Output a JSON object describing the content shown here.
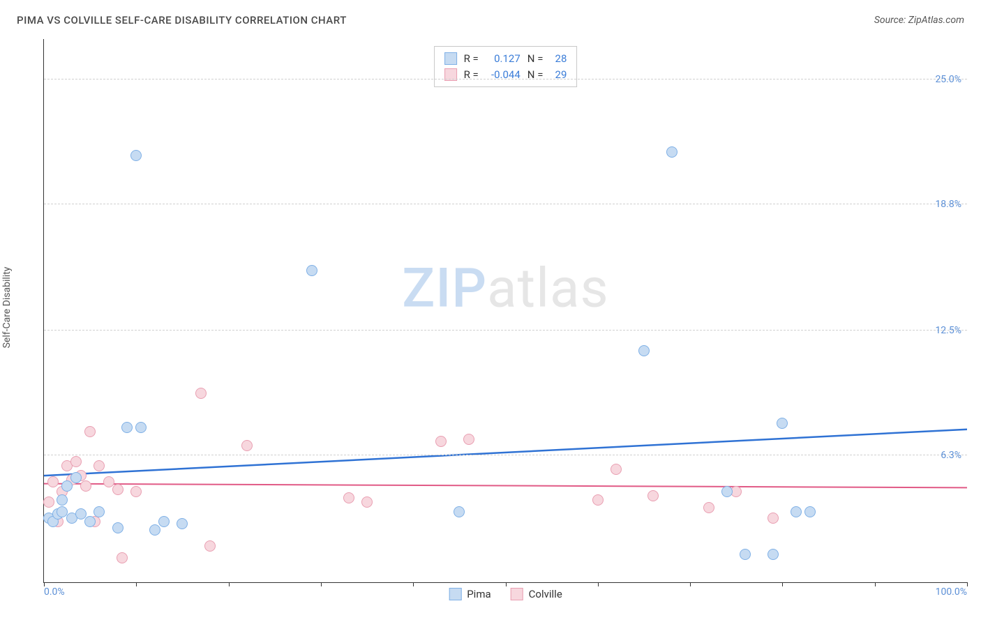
{
  "title": "PIMA VS COLVILLE SELF-CARE DISABILITY CORRELATION CHART",
  "source": "Source: ZipAtlas.com",
  "ylabel": "Self-Care Disability",
  "watermark": {
    "part1": "ZIP",
    "part2": "atlas"
  },
  "chart": {
    "type": "scatter",
    "background_color": "#ffffff",
    "grid_color": "#d0d0d0",
    "axis_color": "#333333",
    "xlim": [
      0,
      100
    ],
    "ylim": [
      0,
      27
    ],
    "x_ticks": [
      0,
      10,
      20,
      30,
      40,
      50,
      60,
      70,
      80,
      90,
      100
    ],
    "x_tick_labels": {
      "0": "0.0%",
      "100": "100.0%"
    },
    "y_gridlines": [
      6.3,
      12.5,
      18.8,
      25.0
    ],
    "y_tick_labels": [
      "6.3%",
      "12.5%",
      "18.8%",
      "25.0%"
    ],
    "marker_size": 16,
    "series": [
      {
        "name": "Pima",
        "fill": "#c6dbf2",
        "stroke": "#7fb0e6",
        "trend_color": "#2f72d4",
        "trend_width": 2.5,
        "R": "0.127",
        "N": "28",
        "trend": {
          "y_at_x0": 5.3,
          "y_at_x100": 7.6
        },
        "points": [
          [
            0.5,
            3.2
          ],
          [
            1,
            3.0
          ],
          [
            1.5,
            3.4
          ],
          [
            2,
            4.1
          ],
          [
            2,
            3.5
          ],
          [
            2.5,
            4.8
          ],
          [
            3,
            3.2
          ],
          [
            3.5,
            5.2
          ],
          [
            4,
            3.4
          ],
          [
            5,
            3.0
          ],
          [
            6,
            3.5
          ],
          [
            8,
            2.7
          ],
          [
            9,
            7.7
          ],
          [
            10,
            21.2
          ],
          [
            10.5,
            7.7
          ],
          [
            12,
            2.6
          ],
          [
            13,
            3.0
          ],
          [
            15,
            2.9
          ],
          [
            29,
            15.5
          ],
          [
            45,
            3.5
          ],
          [
            65,
            11.5
          ],
          [
            68,
            21.4
          ],
          [
            74,
            4.5
          ],
          [
            76,
            1.4
          ],
          [
            79,
            1.4
          ],
          [
            80,
            7.9
          ],
          [
            81.5,
            3.5
          ],
          [
            83,
            3.5
          ]
        ]
      },
      {
        "name": "Colville",
        "fill": "#f7d7de",
        "stroke": "#e99fb2",
        "trend_color": "#e15a86",
        "trend_width": 2,
        "R": "-0.044",
        "N": "29",
        "trend": {
          "y_at_x0": 4.9,
          "y_at_x100": 4.7
        },
        "points": [
          [
            0.5,
            4.0
          ],
          [
            1,
            5.0
          ],
          [
            1.5,
            3.0
          ],
          [
            2,
            4.5
          ],
          [
            2.5,
            5.8
          ],
          [
            3,
            5.1
          ],
          [
            3.5,
            6.0
          ],
          [
            4,
            5.3
          ],
          [
            4.5,
            4.8
          ],
          [
            5,
            7.5
          ],
          [
            5.5,
            3.0
          ],
          [
            6,
            5.8
          ],
          [
            7,
            5.0
          ],
          [
            8,
            4.6
          ],
          [
            8.5,
            1.2
          ],
          [
            10,
            4.5
          ],
          [
            17,
            9.4
          ],
          [
            18,
            1.8
          ],
          [
            22,
            6.8
          ],
          [
            33,
            4.2
          ],
          [
            35,
            4.0
          ],
          [
            43,
            7.0
          ],
          [
            46,
            7.1
          ],
          [
            60,
            4.1
          ],
          [
            62,
            5.6
          ],
          [
            66,
            4.3
          ],
          [
            72,
            3.7
          ],
          [
            75,
            4.5
          ],
          [
            79,
            3.2
          ]
        ]
      }
    ],
    "legend": {
      "R_label": "R =",
      "N_label": "N ="
    }
  }
}
